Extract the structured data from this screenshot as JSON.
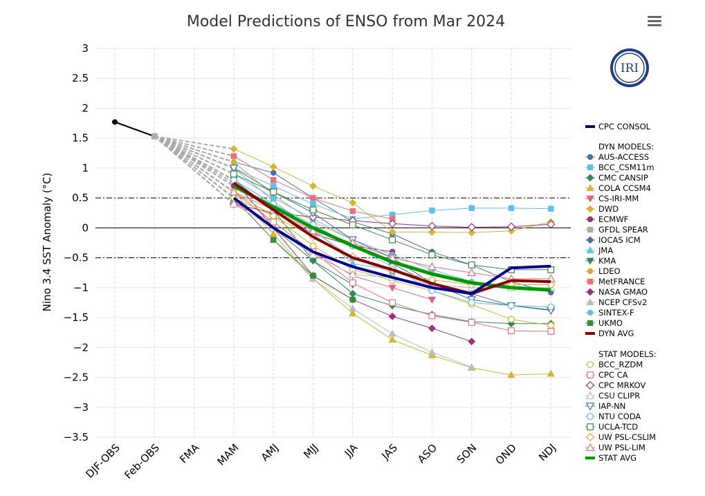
{
  "chart_data": {
    "type": "line",
    "title": "Model Predictions of ENSO from Mar 2024",
    "ylabel": "Nino 3.4 SST Anomaly (°C)",
    "xlabel": "",
    "categories": [
      "DJF-OBS",
      "Feb-OBS",
      "FMA",
      "MAM",
      "AMJ",
      "MJJ",
      "JJA",
      "JAS",
      "ASO",
      "SON",
      "OND",
      "NDJ"
    ],
    "ylim": [
      -3.5,
      3
    ],
    "yticks": [
      "3",
      "2.5",
      "2",
      "1.5",
      "1",
      "0.5",
      "0",
      "−0.5",
      "−1",
      "−1.5",
      "−2",
      "−2.5",
      "−3",
      "−3.5"
    ],
    "grid": true,
    "reference_lines": [
      0.5,
      0,
      -0.5
    ],
    "observed": [
      1.77,
      1.53
    ],
    "logo_text": "IRI",
    "legend_position": "right",
    "legend_headers": {
      "dyn": "DYN MODELS:",
      "stat": "STAT MODELS:"
    },
    "consol": {
      "name": "CPC CONSOL",
      "color": "#000099",
      "values": [
        0.5,
        0.0,
        -0.4,
        -0.65,
        -0.83,
        -1.0,
        -1.1,
        -0.67,
        -0.64
      ]
    },
    "dyn_models": [
      {
        "name": "AUS-ACCESS",
        "color": "#4572A7",
        "marker": "circle",
        "values": [
          1.1,
          0.92,
          0.5,
          0.1,
          -0.1,
          -0.4,
          -0.62,
          -0.9,
          -1.08
        ]
      },
      {
        "name": "BCC_CSM11m",
        "color": "#5BC0EB",
        "marker": "square",
        "values": [
          1.0,
          0.7,
          0.4,
          0.15,
          0.22,
          0.29,
          0.33,
          0.33,
          0.32
        ]
      },
      {
        "name": "CMC CANSIP",
        "color": "#2E8B57",
        "marker": "diamond",
        "values": [
          0.5,
          0.0,
          -0.55,
          -1.1,
          -1.3,
          -1.45,
          -1.57,
          -1.6,
          -1.6
        ]
      },
      {
        "name": "COLA CCSM4",
        "color": "#D4B62F",
        "marker": "triangle",
        "values": [
          0.6,
          -0.1,
          -0.85,
          -1.43,
          -1.87,
          -2.13,
          -2.34,
          -2.46,
          -2.44
        ]
      },
      {
        "name": "CS-IRI-MM",
        "color": "#E8607A",
        "marker": "triangle-down",
        "values": [
          0.6,
          0.1,
          -0.4,
          -0.8,
          -1.0,
          -1.2,
          null,
          null,
          null
        ]
      },
      {
        "name": "DWD",
        "color": "#D4B62F",
        "marker": "diamond",
        "values": [
          1.32,
          1.02,
          0.7,
          0.42,
          -0.07,
          -0.07,
          -0.08,
          -0.05,
          0.1
        ]
      },
      {
        "name": "ECMWF",
        "color": "#A0307A",
        "marker": "circle",
        "values": [
          0.7,
          0.3,
          -0.1,
          -0.3,
          -0.4,
          null,
          null,
          null,
          null
        ]
      },
      {
        "name": "GFDL SPEAR",
        "color": "#AAAAAA",
        "marker": "square",
        "values": [
          1.0,
          0.45,
          -0.05,
          -0.5,
          -0.75,
          null,
          null,
          null,
          null
        ]
      },
      {
        "name": "IOCAS ICM",
        "color": "#4572A7",
        "marker": "diamond",
        "values": [
          0.8,
          0.4,
          0.0,
          -0.3,
          -0.6,
          -0.95,
          -1.1,
          -1.3,
          -1.37
        ]
      },
      {
        "name": "JMA",
        "color": "#5BC0EB",
        "marker": "triangle",
        "values": [
          0.8,
          0.4,
          0.0,
          -0.6,
          -0.7,
          null,
          null,
          null,
          null
        ]
      },
      {
        "name": "KMA",
        "color": "#2E8B57",
        "marker": "triangle-down",
        "values": [
          0.8,
          0.3,
          -0.55,
          -0.95,
          null,
          null,
          null,
          null,
          null
        ]
      },
      {
        "name": "LDEO",
        "color": "#C8B432",
        "marker": "circle",
        "values": [
          1.1,
          0.55,
          0.1,
          -0.2,
          -0.45,
          null,
          null,
          null,
          null
        ]
      },
      {
        "name": "MetFRANCE",
        "color": "#F06E7A",
        "marker": "square",
        "values": [
          1.2,
          0.8,
          0.5,
          0.28,
          0.15,
          null,
          null,
          null,
          null
        ]
      },
      {
        "name": "NASA GMAO",
        "color": "#A0307A",
        "marker": "diamond",
        "values": [
          0.8,
          0.0,
          -0.8,
          -1.2,
          -1.48,
          -1.68,
          -1.9,
          null,
          null
        ]
      },
      {
        "name": "NCEP CFSv2",
        "color": "#BBBBBB",
        "marker": "triangle",
        "values": [
          0.5,
          -0.2,
          -0.85,
          -1.35,
          -1.77,
          -2.08,
          -2.33,
          null,
          null
        ]
      },
      {
        "name": "SINTEX-F",
        "color": "#5BC0EB",
        "marker": "circle",
        "values": [
          0.9,
          0.5,
          0.15,
          -0.2,
          -0.45,
          -0.7,
          -0.9,
          null,
          null
        ]
      },
      {
        "name": "UKMO",
        "color": "#3A8A3A",
        "marker": "square",
        "values": [
          0.5,
          -0.2,
          -0.8,
          -1.2,
          null,
          null,
          null,
          null,
          null
        ]
      },
      {
        "name": "DYN AVG",
        "color": "#8B0000",
        "marker": "none",
        "values": [
          0.75,
          0.3,
          -0.15,
          -0.5,
          -0.7,
          -0.93,
          -1.1,
          -0.88,
          -0.9
        ]
      }
    ],
    "stat_models": [
      {
        "name": "BCC_RZDM",
        "color": "#D4B62F",
        "marker": "circle-open",
        "values": [
          0.6,
          0.2,
          -0.3,
          -0.7,
          -0.88,
          -1.05,
          -1.28,
          -1.53,
          -1.63
        ]
      },
      {
        "name": "CPC CA",
        "color": "#F06E7A",
        "marker": "square-open",
        "values": [
          0.4,
          0.1,
          -0.4,
          -0.92,
          -1.25,
          -1.47,
          -1.58,
          -1.72,
          -1.73
        ]
      },
      {
        "name": "CPC MRKOV",
        "color": "#A0307A",
        "marker": "diamond-open",
        "values": [
          0.4,
          0.25,
          0.18,
          0.12,
          0.07,
          0.03,
          0.01,
          0.02,
          0.06
        ]
      },
      {
        "name": "CSU CLIPR",
        "color": "#BBBBBB",
        "marker": "triangle-open",
        "values": [
          0.4,
          0.0,
          -0.45,
          -0.78,
          -0.83,
          -0.95,
          -1.0,
          -1.0,
          -1.0
        ]
      },
      {
        "name": "IAP-NN",
        "color": "#4572A7",
        "marker": "triangle-down-open",
        "values": [
          1.0,
          0.6,
          0.25,
          -0.2,
          -0.5,
          -0.93,
          -1.2,
          -1.3,
          -1.38
        ]
      },
      {
        "name": "NTU CODA",
        "color": "#5BC0EB",
        "marker": "circle-open",
        "values": [
          0.8,
          0.4,
          0.05,
          -0.3,
          -0.65,
          -1.05,
          -1.25,
          -1.3,
          -1.32
        ]
      },
      {
        "name": "UCLA-TCD",
        "color": "#3A8A3A",
        "marker": "square-open",
        "values": [
          0.9,
          0.6,
          0.3,
          0.05,
          -0.2,
          -0.45,
          -0.62,
          -0.7,
          -0.7
        ]
      },
      {
        "name": "UW PSL-CSLIM",
        "color": "#C8B432",
        "marker": "diamond-open",
        "values": [
          0.5,
          0.2,
          -0.15,
          -0.48,
          -0.7,
          -0.87,
          -0.95,
          -0.95,
          -0.95
        ]
      },
      {
        "name": "UW PSL-LIM",
        "color": "#F06E7A",
        "marker": "triangle-open",
        "values": [
          0.6,
          0.3,
          -0.05,
          -0.25,
          -0.5,
          -0.65,
          -0.75,
          -0.85,
          -0.85
        ]
      },
      {
        "name": "STAT AVG",
        "color": "#009900",
        "marker": "none",
        "values": [
          0.7,
          0.35,
          0.0,
          -0.3,
          -0.57,
          -0.77,
          -0.92,
          -1.0,
          -1.04
        ]
      }
    ]
  }
}
